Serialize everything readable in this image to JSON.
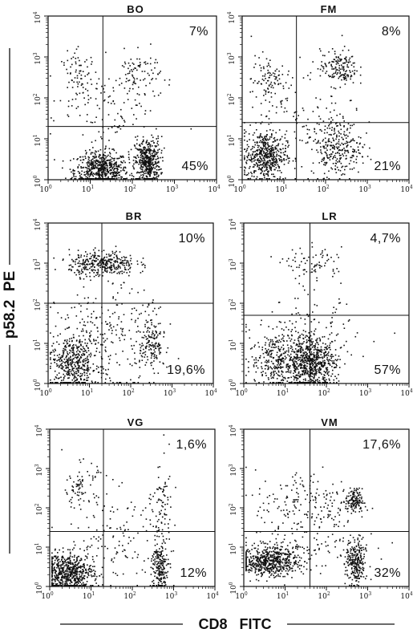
{
  "figure": {
    "y_axis_label": "p58.2  PE",
    "x_axis_label": "CD8   FITC",
    "colors": {
      "ink": "#111111",
      "background": "#ffffff"
    }
  },
  "chart_data": [
    {
      "type": "scatter",
      "title": "BO",
      "scale": "log",
      "xlim": [
        1,
        10000
      ],
      "ylim": [
        1,
        10000
      ],
      "gate": {
        "x": 20,
        "y": 20
      },
      "quadrant_percent": {
        "upper_right": "7%",
        "lower_right": "45%"
      },
      "populations": [
        {
          "cx": 1.25,
          "cy": 0.25,
          "sx": 0.32,
          "sy": 0.22,
          "n": 600
        },
        {
          "cx": 2.35,
          "cy": 0.45,
          "sx": 0.15,
          "sy": 0.28,
          "n": 450
        },
        {
          "cx": 0.75,
          "cy": 2.5,
          "sx": 0.22,
          "sy": 0.32,
          "n": 90
        },
        {
          "cx": 2.1,
          "cy": 2.55,
          "sx": 0.28,
          "sy": 0.3,
          "n": 90
        },
        {
          "cx": 1.6,
          "cy": 1.5,
          "sx": 0.6,
          "sy": 0.6,
          "n": 100
        }
      ]
    },
    {
      "type": "scatter",
      "title": "FM",
      "scale": "log",
      "xlim": [
        1,
        10000
      ],
      "ylim": [
        1,
        10000
      ],
      "gate": {
        "x": 20,
        "y": 25
      },
      "quadrant_percent": {
        "upper_right": "8%",
        "lower_right": "21%"
      },
      "populations": [
        {
          "cx": 0.55,
          "cy": 0.6,
          "sx": 0.25,
          "sy": 0.3,
          "n": 500
        },
        {
          "cx": 2.25,
          "cy": 0.8,
          "sx": 0.3,
          "sy": 0.35,
          "n": 280
        },
        {
          "cx": 0.6,
          "cy": 2.45,
          "sx": 0.2,
          "sy": 0.3,
          "n": 90
        },
        {
          "cx": 2.3,
          "cy": 2.75,
          "sx": 0.22,
          "sy": 0.22,
          "n": 160
        },
        {
          "cx": 1.5,
          "cy": 1.7,
          "sx": 0.7,
          "sy": 0.6,
          "n": 110
        }
      ]
    },
    {
      "type": "scatter",
      "title": "BR",
      "scale": "log",
      "xlim": [
        1,
        10000
      ],
      "ylim": [
        1,
        10000
      ],
      "gate": {
        "x": 20,
        "y": 100
      },
      "quadrant_percent": {
        "upper_right": "10%",
        "lower_right": "19,6%"
      },
      "populations": [
        {
          "cx": 1.3,
          "cy": 3.0,
          "sx": 0.4,
          "sy": 0.16,
          "n": 350
        },
        {
          "cx": 0.6,
          "cy": 0.5,
          "sx": 0.3,
          "sy": 0.35,
          "n": 450
        },
        {
          "cx": 2.5,
          "cy": 1.0,
          "sx": 0.15,
          "sy": 0.4,
          "n": 160
        },
        {
          "cx": 1.4,
          "cy": 1.2,
          "sx": 0.6,
          "sy": 0.6,
          "n": 220
        }
      ]
    },
    {
      "type": "scatter",
      "title": "LR",
      "scale": "log",
      "xlim": [
        1,
        10000
      ],
      "ylim": [
        1,
        10000
      ],
      "gate": {
        "x": 40,
        "y": 50
      },
      "quadrant_percent": {
        "upper_right": "4,7%",
        "lower_right": "57%"
      },
      "populations": [
        {
          "cx": 1.6,
          "cy": 0.5,
          "sx": 0.3,
          "sy": 0.3,
          "n": 650
        },
        {
          "cx": 0.75,
          "cy": 0.6,
          "sx": 0.3,
          "sy": 0.35,
          "n": 250
        },
        {
          "cx": 1.7,
          "cy": 3.0,
          "sx": 0.35,
          "sy": 0.2,
          "n": 80
        },
        {
          "cx": 1.5,
          "cy": 1.1,
          "sx": 0.6,
          "sy": 0.5,
          "n": 180
        }
      ]
    },
    {
      "type": "scatter",
      "title": "VG",
      "scale": "log",
      "xlim": [
        1,
        10000
      ],
      "ylim": [
        1,
        10000
      ],
      "gate": {
        "x": 20,
        "y": 25
      },
      "quadrant_percent": {
        "upper_right": "1,6%",
        "lower_right": "12%"
      },
      "populations": [
        {
          "cx": 0.45,
          "cy": 0.35,
          "sx": 0.3,
          "sy": 0.25,
          "n": 650
        },
        {
          "cx": 2.65,
          "cy": 0.5,
          "sx": 0.1,
          "sy": 0.35,
          "n": 200
        },
        {
          "cx": 0.75,
          "cy": 2.6,
          "sx": 0.2,
          "sy": 0.28,
          "n": 80
        },
        {
          "cx": 2.7,
          "cy": 2.0,
          "sx": 0.12,
          "sy": 0.6,
          "n": 80
        },
        {
          "cx": 1.6,
          "cy": 1.3,
          "sx": 0.6,
          "sy": 0.6,
          "n": 130
        }
      ]
    },
    {
      "type": "scatter",
      "title": "VM",
      "scale": "log",
      "xlim": [
        1,
        10000
      ],
      "ylim": [
        1,
        10000
      ],
      "gate": {
        "x": 40,
        "y": 25
      },
      "quadrant_percent": {
        "upper_right": "17,6%",
        "lower_right": "32%"
      },
      "populations": [
        {
          "cx": 0.6,
          "cy": 0.65,
          "sx": 0.35,
          "sy": 0.18,
          "n": 550
        },
        {
          "cx": 2.7,
          "cy": 0.6,
          "sx": 0.12,
          "sy": 0.3,
          "n": 250
        },
        {
          "cx": 2.65,
          "cy": 2.2,
          "sx": 0.1,
          "sy": 0.15,
          "n": 130
        },
        {
          "cx": 1.6,
          "cy": 2.1,
          "sx": 0.7,
          "sy": 0.45,
          "n": 200
        },
        {
          "cx": 1.4,
          "cy": 1.0,
          "sx": 0.7,
          "sy": 0.35,
          "n": 120
        }
      ]
    }
  ]
}
